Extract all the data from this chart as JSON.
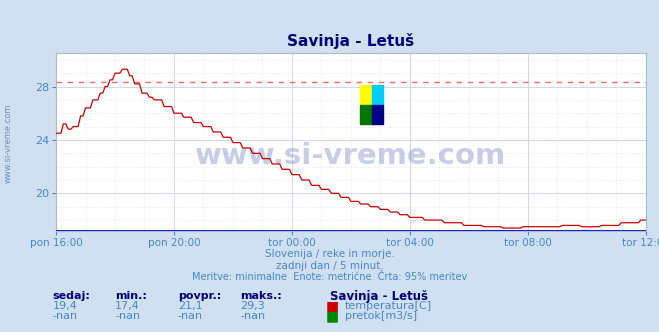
{
  "title": "Savinja - Letuš",
  "title_color": "#000080",
  "bg_color": "#d0e0f0",
  "plot_bg_color": "#ffffff",
  "grid_color_major": "#d0d8e8",
  "grid_color_minor": "#e8eef8",
  "line_color": "#cc0000",
  "line_color2": "#008800",
  "hline_color": "#ff6666",
  "hline_value": 28.35,
  "bottom_line_color": "#2222cc",
  "ylabel_color": "#4488cc",
  "xlabel_color": "#4488cc",
  "watermark": "www.si-vreme.com",
  "watermark_color": "#3355aa",
  "watermark_alpha": 0.28,
  "x_tick_labels": [
    "pon 16:00",
    "pon 20:00",
    "tor 00:00",
    "tor 04:00",
    "tor 08:00",
    "tor 12:00"
  ],
  "x_tick_positions": [
    0,
    48,
    96,
    144,
    192,
    240
  ],
  "ylim": [
    17.2,
    30.5
  ],
  "y_ticks": [
    20,
    24,
    28
  ],
  "subtitle1": "Slovenija / reke in morje.",
  "subtitle2": "zadnji dan / 5 minut.",
  "subtitle3": "Meritve: minimalne  Enote: metrične  Črta: 95% meritev",
  "subtitle_color": "#4488cc",
  "table_headers": [
    "sedaj:",
    "min.:",
    "povpr.:",
    "maks.:"
  ],
  "table_vals_row1": [
    "19,4",
    "17,4",
    "21,1",
    "29,3"
  ],
  "table_vals_row2": [
    "-nan",
    "-nan",
    "-nan",
    "-nan"
  ],
  "table_color": "#4488cc",
  "table_bold_color": "#000080",
  "station_label": "Savinja - Letuš",
  "legend1_label": "temperatura[C]",
  "legend2_label": "pretok[m3/s]",
  "legend1_color": "#cc0000",
  "legend2_color": "#008800",
  "side_text": "www.si-vreme.com",
  "side_text_color": "#5577aa",
  "n_points": 289,
  "logo_colors": [
    "#ffff00",
    "#00ccff",
    "#007700",
    "#000088"
  ]
}
